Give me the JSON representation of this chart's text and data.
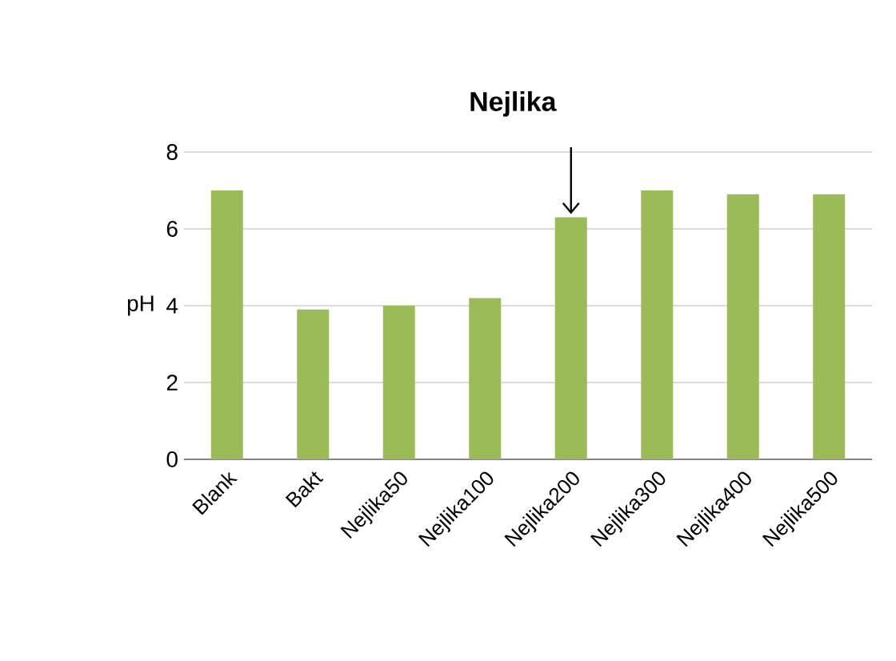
{
  "chart_data": {
    "type": "bar",
    "categories": [
      "Blank",
      "Bakt",
      "Nejlika50",
      "Nejlika100",
      "Nejlika200",
      "Nejlika300",
      "Nejlika400",
      "Nejlika500"
    ],
    "values": [
      7.0,
      3.9,
      4.0,
      4.2,
      6.3,
      7.0,
      6.9,
      6.9
    ],
    "color": "#9bbb59",
    "ylabel": "pH",
    "ylim": [
      0,
      8
    ],
    "yticks": [
      0,
      2,
      4,
      6,
      8
    ],
    "grid": "y",
    "annotations": [
      {
        "text": "Nejlika",
        "x": "Nejlika200",
        "y": 6.3
      }
    ]
  }
}
